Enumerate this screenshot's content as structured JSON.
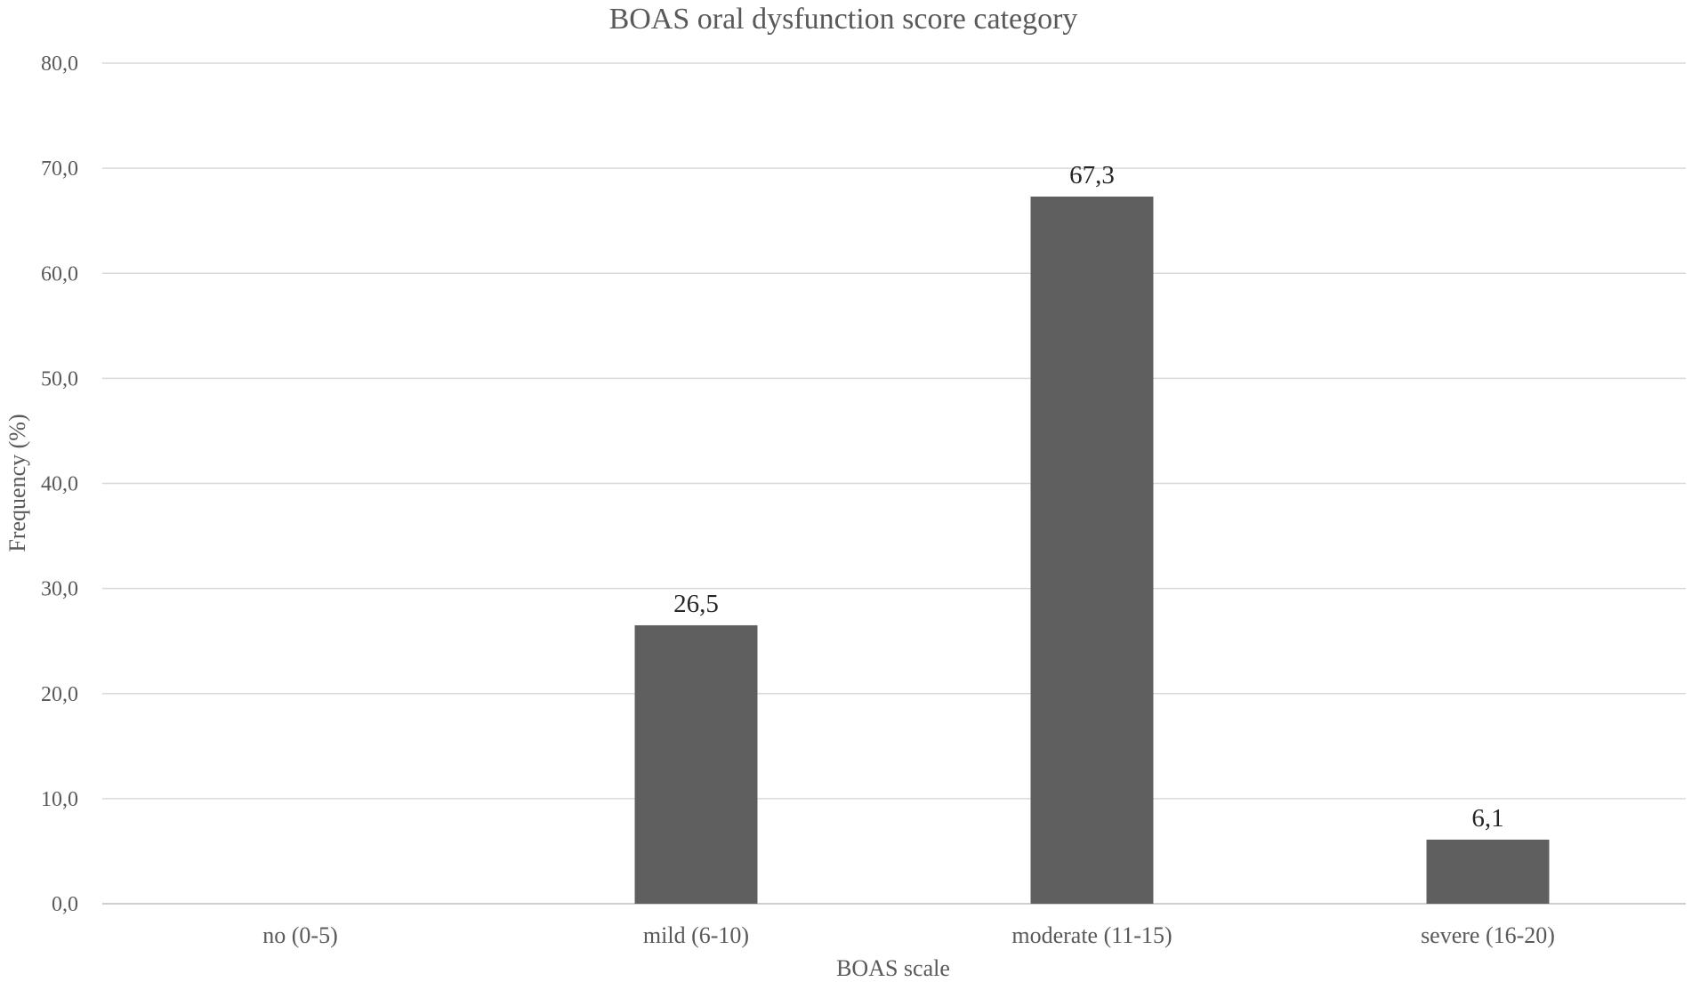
{
  "chart_data": {
    "type": "bar",
    "title": "BOAS oral dysfunction score category",
    "xlabel": "BOAS scale",
    "ylabel": "Frequency (%)",
    "categories": [
      "no (0-5)",
      "mild (6-10)",
      "moderate (11-15)",
      "severe (16-20)"
    ],
    "values": [
      0,
      26.5,
      67.3,
      6.1
    ],
    "data_labels": [
      "",
      "26,5",
      "67,3",
      "6,1"
    ],
    "ylim": [
      0,
      80
    ],
    "yticks": [
      0,
      10,
      20,
      30,
      40,
      50,
      60,
      70,
      80
    ],
    "ytick_labels": [
      "0,0",
      "10,0",
      "20,0",
      "30,0",
      "40,0",
      "50,0",
      "60,0",
      "70,0",
      "80,0"
    ],
    "grid": true,
    "legend": "none",
    "colors": {
      "bar": "#5f5f5f"
    }
  }
}
